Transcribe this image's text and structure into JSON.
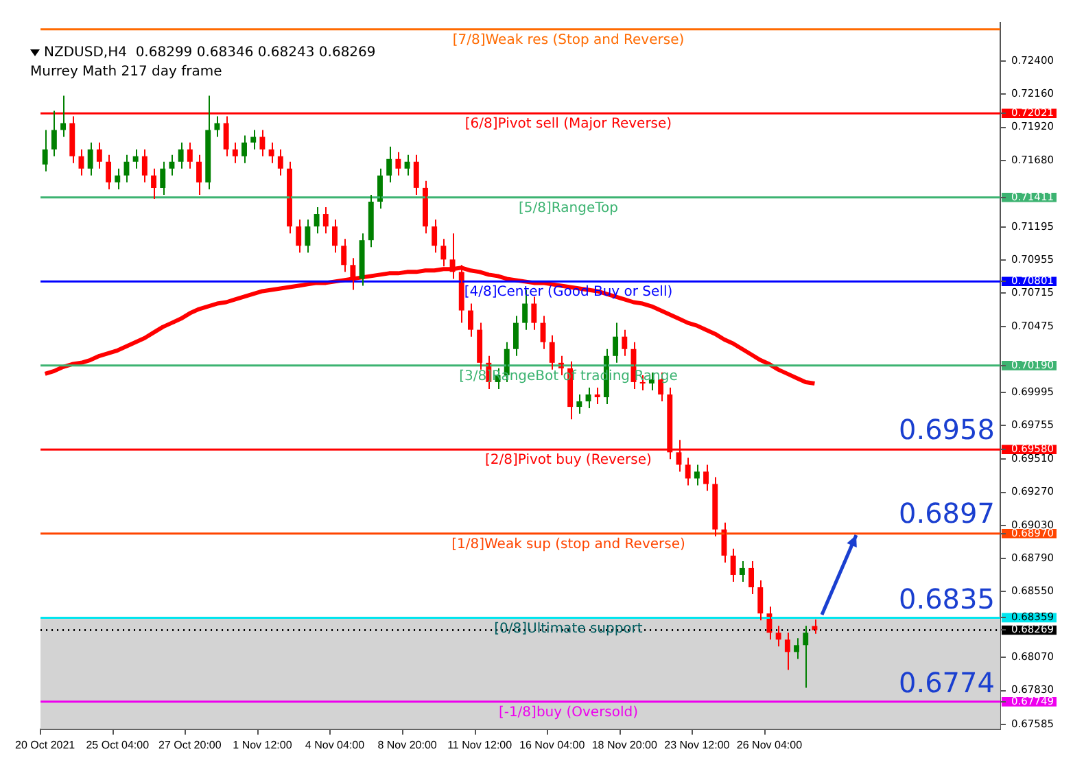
{
  "chart_data": {
    "type": "candlestick",
    "title": "NZDUSD,H4  0.68299 0.68346 0.68243 0.68269",
    "subtitle": "Murrey Math 217 day frame",
    "categories": [
      "20 Oct 2021",
      null,
      null,
      null,
      null,
      null,
      null,
      null,
      "25 Oct 04:00",
      null,
      null,
      null,
      null,
      null,
      null,
      null,
      "27 Oct 20:00",
      null,
      null,
      null,
      null,
      null,
      null,
      null,
      "1 Nov 12:00",
      null,
      null,
      null,
      null,
      null,
      null,
      null,
      "4 Nov 04:00",
      null,
      null,
      null,
      null,
      null,
      null,
      null,
      "8 Nov 20:00",
      null,
      null,
      null,
      null,
      null,
      null,
      null,
      "11 Nov 12:00",
      null,
      null,
      null,
      null,
      null,
      null,
      null,
      "16 Nov 04:00",
      null,
      null,
      null,
      null,
      null,
      null,
      null,
      "18 Nov 20:00",
      null,
      null,
      null,
      null,
      null,
      null,
      null,
      "23 Nov 12:00",
      null,
      null,
      null,
      null,
      null,
      null,
      null,
      "26 Nov 04:00",
      null,
      null,
      null,
      null,
      null,
      null,
      null,
      null,
      null,
      null,
      null,
      null,
      null,
      null,
      null,
      null,
      null,
      null,
      null,
      null,
      null,
      null,
      null,
      null,
      null
    ],
    "ohlc": [
      [
        0.7165,
        0.719,
        0.716,
        0.7176
      ],
      [
        0.7176,
        0.7204,
        0.7171,
        0.719
      ],
      [
        0.719,
        0.7215,
        0.7185,
        0.7195
      ],
      [
        0.7195,
        0.72,
        0.7166,
        0.7171
      ],
      [
        0.7171,
        0.7176,
        0.7157,
        0.7162
      ],
      [
        0.7162,
        0.7181,
        0.7157,
        0.7176
      ],
      [
        0.7176,
        0.7181,
        0.7162,
        0.7167
      ],
      [
        0.7167,
        0.7172,
        0.7147,
        0.7152
      ],
      [
        0.7152,
        0.7162,
        0.7147,
        0.7157
      ],
      [
        0.7157,
        0.7172,
        0.7152,
        0.7167
      ],
      [
        0.7167,
        0.7176,
        0.7162,
        0.7171
      ],
      [
        0.7171,
        0.7176,
        0.7152,
        0.7157
      ],
      [
        0.7157,
        0.7162,
        0.714,
        0.7148
      ],
      [
        0.7148,
        0.7167,
        0.7143,
        0.7162
      ],
      [
        0.7162,
        0.7172,
        0.7157,
        0.7167
      ],
      [
        0.7167,
        0.7181,
        0.7162,
        0.7176
      ],
      [
        0.7176,
        0.7181,
        0.7162,
        0.7167
      ],
      [
        0.7167,
        0.7172,
        0.7143,
        0.7152
      ],
      [
        0.7152,
        0.7215,
        0.7147,
        0.719
      ],
      [
        0.719,
        0.72,
        0.7185,
        0.7195
      ],
      [
        0.7195,
        0.72,
        0.7171,
        0.7176
      ],
      [
        0.7176,
        0.7181,
        0.7166,
        0.7171
      ],
      [
        0.7171,
        0.7186,
        0.7166,
        0.7181
      ],
      [
        0.7181,
        0.719,
        0.7176,
        0.7185
      ],
      [
        0.7185,
        0.719,
        0.7171,
        0.7176
      ],
      [
        0.7176,
        0.7181,
        0.7166,
        0.7171
      ],
      [
        0.7171,
        0.7176,
        0.7157,
        0.7162
      ],
      [
        0.7162,
        0.7167,
        0.7115,
        0.712
      ],
      [
        0.712,
        0.7125,
        0.7101,
        0.7106
      ],
      [
        0.7106,
        0.7125,
        0.7101,
        0.712
      ],
      [
        0.712,
        0.7134,
        0.7115,
        0.7129
      ],
      [
        0.7129,
        0.7134,
        0.7115,
        0.712
      ],
      [
        0.712,
        0.7125,
        0.7101,
        0.7106
      ],
      [
        0.7106,
        0.7111,
        0.7087,
        0.7092
      ],
      [
        0.7092,
        0.7097,
        0.7074,
        0.7082
      ],
      [
        0.7082,
        0.7115,
        0.7077,
        0.711
      ],
      [
        0.711,
        0.7143,
        0.7105,
        0.7138
      ],
      [
        0.7138,
        0.7162,
        0.7133,
        0.7157
      ],
      [
        0.7157,
        0.7178,
        0.7152,
        0.7169
      ],
      [
        0.7169,
        0.7174,
        0.7157,
        0.7162
      ],
      [
        0.7162,
        0.7172,
        0.7157,
        0.7167
      ],
      [
        0.7167,
        0.7172,
        0.7143,
        0.7148
      ],
      [
        0.7148,
        0.7153,
        0.7115,
        0.712
      ],
      [
        0.712,
        0.7125,
        0.7101,
        0.7106
      ],
      [
        0.7106,
        0.7111,
        0.7091,
        0.7096
      ],
      [
        0.7096,
        0.7115,
        0.7082,
        0.7087
      ],
      [
        0.7087,
        0.7092,
        0.705,
        0.7059
      ],
      [
        0.7059,
        0.7064,
        0.704,
        0.7045
      ],
      [
        0.7045,
        0.705,
        0.7016,
        0.7021
      ],
      [
        0.7021,
        0.7026,
        0.7002,
        0.7007
      ],
      [
        0.7007,
        0.7017,
        0.7002,
        0.7012
      ],
      [
        0.7012,
        0.7036,
        0.7007,
        0.7031
      ],
      [
        0.7031,
        0.7055,
        0.7026,
        0.705
      ],
      [
        0.705,
        0.7074,
        0.7045,
        0.7064
      ],
      [
        0.7064,
        0.7069,
        0.7045,
        0.705
      ],
      [
        0.705,
        0.7055,
        0.7031,
        0.7036
      ],
      [
        0.7036,
        0.7041,
        0.7016,
        0.7021
      ],
      [
        0.7021,
        0.7026,
        0.7012,
        0.7017
      ],
      [
        0.7017,
        0.7022,
        0.698,
        0.6989
      ],
      [
        0.6989,
        0.6998,
        0.6984,
        0.6993
      ],
      [
        0.6993,
        0.7003,
        0.6988,
        0.6998
      ],
      [
        0.6998,
        0.7003,
        0.6991,
        0.6996
      ],
      [
        0.6996,
        0.7031,
        0.6991,
        0.7026
      ],
      [
        0.7026,
        0.705,
        0.7021,
        0.704
      ],
      [
        0.704,
        0.7045,
        0.7026,
        0.7031
      ],
      [
        0.7031,
        0.7036,
        0.7002,
        0.7007
      ],
      [
        0.7007,
        0.7012,
        0.7001,
        0.7006
      ],
      [
        0.7006,
        0.7014,
        0.7001,
        0.7009
      ],
      [
        0.7009,
        0.7014,
        0.6993,
        0.6998
      ],
      [
        0.6998,
        0.7003,
        0.6951,
        0.6956
      ],
      [
        0.6956,
        0.6965,
        0.6942,
        0.6947
      ],
      [
        0.6947,
        0.6952,
        0.6932,
        0.6937
      ],
      [
        0.6937,
        0.6947,
        0.6932,
        0.6942
      ],
      [
        0.6942,
        0.6947,
        0.6928,
        0.6933
      ],
      [
        0.6933,
        0.6938,
        0.6895,
        0.69
      ],
      [
        0.69,
        0.6905,
        0.6876,
        0.6881
      ],
      [
        0.6881,
        0.6886,
        0.6862,
        0.6867
      ],
      [
        0.6867,
        0.6877,
        0.6862,
        0.6872
      ],
      [
        0.6872,
        0.6877,
        0.6853,
        0.6858
      ],
      [
        0.6858,
        0.6863,
        0.6834,
        0.6839
      ],
      [
        0.6839,
        0.6844,
        0.682,
        0.6825
      ],
      [
        0.6825,
        0.683,
        0.6815,
        0.682
      ],
      [
        0.682,
        0.6825,
        0.6798,
        0.6811
      ],
      [
        0.6811,
        0.6821,
        0.6806,
        0.6816
      ],
      [
        0.6816,
        0.683,
        0.6785,
        0.6825
      ],
      [
        0.68299,
        0.68346,
        0.68243,
        0.68269
      ],
      null,
      null,
      null,
      null,
      null,
      null,
      null,
      null,
      null,
      null,
      null,
      null,
      null,
      null,
      null,
      null,
      null,
      null,
      null,
      null
    ],
    "colors": [
      "#008000",
      "#008000",
      "#008000",
      "#ff0000",
      "#ff0000",
      "#008000",
      "#ff0000",
      "#ff0000",
      "#008000",
      "#008000",
      "#008000",
      "#ff0000",
      "#ff0000",
      "#008000",
      "#008000",
      "#008000",
      "#ff0000",
      "#ff0000",
      "#008000",
      "#008000",
      "#ff0000",
      "#ff0000",
      "#008000",
      "#008000",
      "#ff0000",
      "#ff0000",
      "#ff0000",
      "#ff0000",
      "#ff0000",
      "#008000",
      "#008000",
      "#ff0000",
      "#ff0000",
      "#ff0000",
      "#ff0000",
      "#008000",
      "#008000",
      "#008000",
      "#008000",
      "#ff0000",
      "#008000",
      "#ff0000",
      "#ff0000",
      "#ff0000",
      "#ff0000",
      "#ff0000",
      "#ff0000",
      "#ff0000",
      "#ff0000",
      "#ff0000",
      "#008000",
      "#008000",
      "#008000",
      "#008000",
      "#ff0000",
      "#ff0000",
      "#ff0000",
      "#ff0000",
      "#ff0000",
      "#008000",
      "#008000",
      "#ff0000",
      "#008000",
      "#008000",
      "#ff0000",
      "#ff0000",
      "#ff0000",
      "#008000",
      "#ff0000",
      "#ff0000",
      "#ff0000",
      "#ff0000",
      "#008000",
      "#ff0000",
      "#ff0000",
      "#ff0000",
      "#ff0000",
      "#008000",
      "#ff0000",
      "#ff0000",
      "#ff0000",
      "#ff0000",
      "#ff0000",
      "#008000",
      "#008000",
      "#ff0000",
      null,
      null,
      null,
      null,
      null,
      null,
      null,
      null,
      null,
      null,
      null,
      null,
      null,
      null,
      null,
      null,
      null,
      null,
      null,
      null
    ],
    "series": [
      {
        "type": "line",
        "color": "#ff0000",
        "values": [
          0.7013,
          0.7015,
          0.7018,
          0.702,
          0.7021,
          0.7023,
          0.7026,
          0.7028,
          0.703,
          0.7033,
          0.7036,
          0.7039,
          0.7043,
          0.7047,
          0.705,
          0.7053,
          0.7057,
          0.706,
          0.7062,
          0.7064,
          0.7065,
          0.7067,
          0.7069,
          0.7071,
          0.7073,
          0.7074,
          0.7075,
          0.7076,
          0.7077,
          0.7078,
          0.7079,
          0.7079,
          0.708,
          0.7081,
          0.7082,
          0.7083,
          0.7084,
          0.7085,
          0.7086,
          0.7086,
          0.7087,
          0.7087,
          0.7088,
          0.7088,
          0.7089,
          0.7089,
          0.709,
          0.7088,
          0.7087,
          0.7085,
          0.7084,
          0.7082,
          0.7081,
          0.708,
          0.7079,
          0.7079,
          0.7078,
          0.7077,
          0.7076,
          0.7075,
          0.7074,
          0.7073,
          0.7071,
          0.7069,
          0.7067,
          0.7065,
          0.7064,
          0.7062,
          0.7059,
          0.7056,
          0.7053,
          0.705,
          0.7048,
          0.7045,
          0.7042,
          0.7038,
          0.7035,
          0.7031,
          0.7027,
          0.7023,
          0.702,
          0.7016,
          0.7013,
          0.701,
          0.7007,
          0.7006,
          null,
          null,
          null,
          null,
          null,
          null,
          null,
          null,
          null,
          null,
          null,
          null,
          null,
          null,
          null,
          null,
          null,
          null,
          null,
          null
        ]
      }
    ],
    "ylim": [
      0.6755,
      0.7268
    ],
    "yticks": [
      {
        "value": 0.724,
        "label": "0.72400"
      },
      {
        "value": 0.7216,
        "label": "0.72160"
      },
      {
        "value": 0.72021,
        "label": "0.72021"
      },
      {
        "value": 0.7192,
        "label": "0.71920"
      },
      {
        "value": 0.7168,
        "label": "0.71680"
      },
      {
        "value": 0.71411,
        "label": "0.71411"
      },
      {
        "value": 0.71195,
        "label": "0.71195"
      },
      {
        "value": 0.70955,
        "label": "0.70955"
      },
      {
        "value": 0.70801,
        "label": "0.70801"
      },
      {
        "value": 0.70715,
        "label": "0.70715"
      },
      {
        "value": 0.70475,
        "label": "0.70475"
      },
      {
        "value": 0.7019,
        "label": "0.70190"
      },
      {
        "value": 0.69995,
        "label": "0.69995"
      },
      {
        "value": 0.69755,
        "label": "0.69755"
      },
      {
        "value": 0.6958,
        "label": "0.69580"
      },
      {
        "value": 0.6951,
        "label": "0.69510"
      },
      {
        "value": 0.6927,
        "label": "0.69270"
      },
      {
        "value": 0.6903,
        "label": "0.69030"
      },
      {
        "value": 0.6897,
        "label": "0.68970"
      },
      {
        "value": 0.6879,
        "label": "0.68790"
      },
      {
        "value": 0.6855,
        "label": "0.68550"
      },
      {
        "value": 0.68359,
        "label": "0.68359"
      },
      {
        "value": 0.68269,
        "label": "0.68269"
      },
      {
        "value": 0.6807,
        "label": "0.68070"
      },
      {
        "value": 0.6783,
        "label": "0.67830"
      },
      {
        "value": 0.67749,
        "label": "0.67749"
      },
      {
        "value": 0.67585,
        "label": "0.67585"
      }
    ],
    "bands": [
      {
        "axis": "y",
        "from": 0.6755,
        "to": 0.68359,
        "color": "#d3d3d3"
      }
    ],
    "ref_lines": [
      {
        "axis": "y",
        "value": 0.72631,
        "label": "[7/8]Weak res (Stop and Reverse)",
        "color": "#ff6a00"
      },
      {
        "axis": "y",
        "value": 0.72021,
        "label": "[6/8]Pivot sell (Major Reverse)",
        "color": "#ff0000"
      },
      {
        "axis": "y",
        "value": 0.71411,
        "label": "[5/8]RangeTop",
        "color": "#3cb371"
      },
      {
        "axis": "y",
        "value": 0.70801,
        "label": "[4/8]Center (Good Buy or Sell)",
        "color": "#0000ff"
      },
      {
        "axis": "y",
        "value": 0.7019,
        "label": "[3/8]RangeBot of trading Range",
        "color": "#3cb371"
      },
      {
        "axis": "y",
        "value": 0.6958,
        "label": "[2/8]Pivot buy (Reverse)",
        "color": "#ff0000"
      },
      {
        "axis": "y",
        "value": 0.6897,
        "label": "[1/8]Weak sup (stop and Reverse)",
        "color": "#ff4500"
      },
      {
        "axis": "y",
        "value": 0.68359,
        "label": "[0/8]Ultimate support",
        "color": "#00e5ee"
      },
      {
        "axis": "y",
        "value": 0.68269,
        "color": "#000000",
        "line_style": "dotted"
      },
      {
        "axis": "y",
        "value": 0.67749,
        "label": "[-1/8]buy (Oversold)",
        "color": "#ee00ee"
      }
    ],
    "annotations": [
      {
        "text": "0.6958",
        "y": 0.6958
      },
      {
        "text": "0.6897",
        "y": 0.6897
      },
      {
        "text": "0.6835",
        "y": 0.6835
      },
      {
        "text": "0.6774",
        "y": 0.6774
      }
    ],
    "grid": false,
    "legend": false
  }
}
